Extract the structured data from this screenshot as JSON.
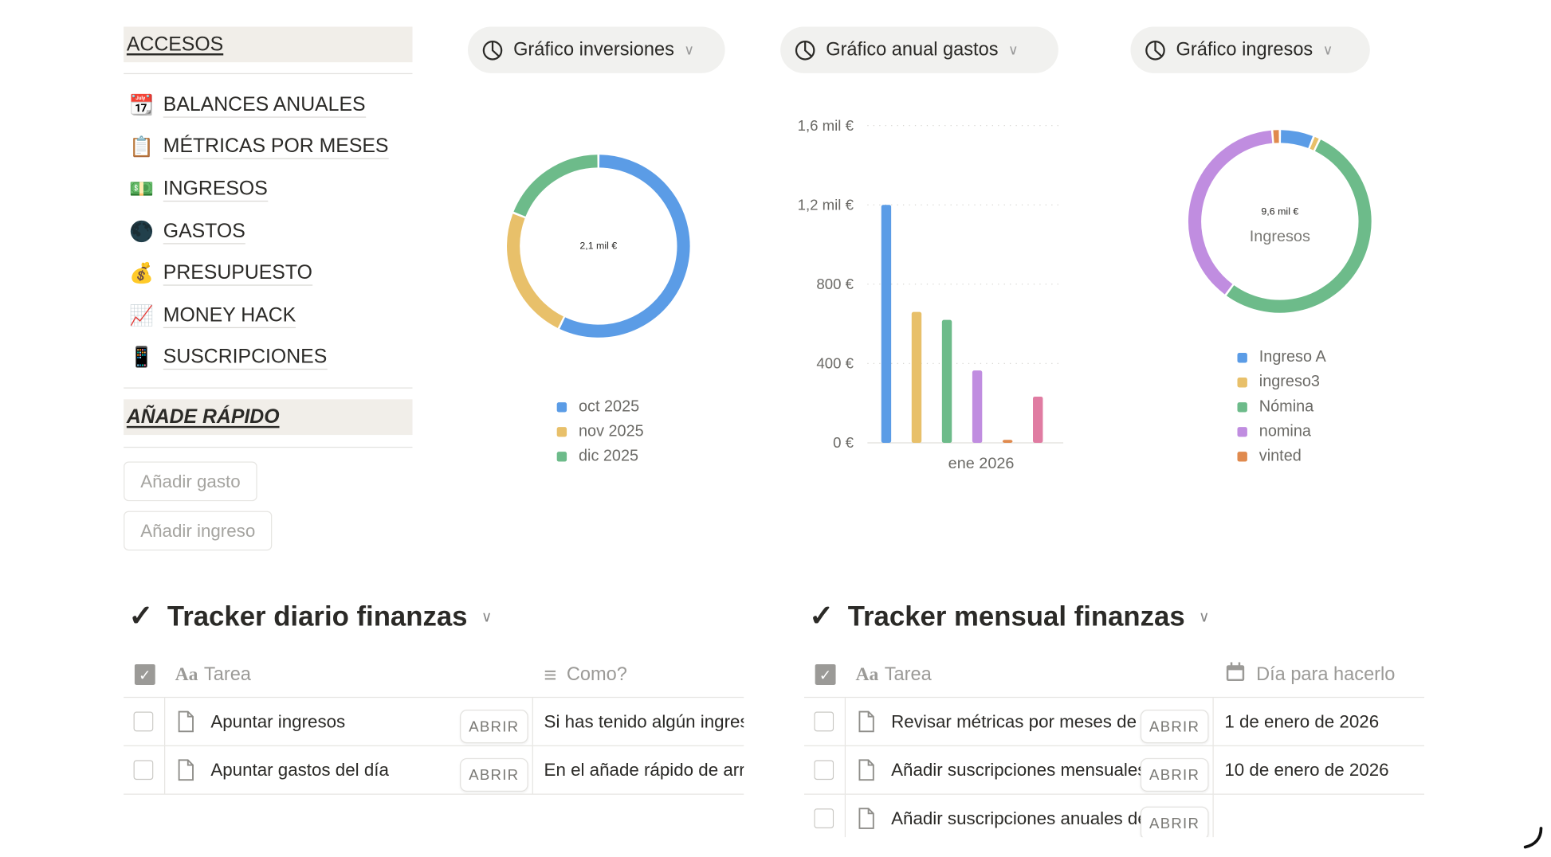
{
  "sidebar": {
    "accesos_title": "ACCESOS",
    "items": [
      {
        "icon": "📆",
        "icon_name": "calendar-icon",
        "label": "BALANCES ANUALES"
      },
      {
        "icon": "📋",
        "icon_name": "clipboard-icon",
        "label": "MÉTRICAS POR MESES"
      },
      {
        "icon": "💵",
        "icon_name": "money-icon",
        "label": "INGRESOS"
      },
      {
        "icon": "🌑",
        "icon_name": "moon-icon",
        "label": "GASTOS"
      },
      {
        "icon": "💰",
        "icon_name": "money-bag-icon",
        "label": "PRESUPUESTO"
      },
      {
        "icon": "📈",
        "icon_name": "chart-increasing-icon",
        "label": "MONEY HACK"
      },
      {
        "icon": "📱",
        "icon_name": "mobile-phone-icon",
        "label": "SUSCRIPCIONES"
      }
    ],
    "quick_title": "AÑADE RÁPIDO",
    "quick_buttons": [
      "Añadir gasto",
      "Añadir ingreso"
    ]
  },
  "chart_selectors": [
    "Gráfico inversiones",
    "Gráfico anual gastos",
    "Gráfico ingresos"
  ],
  "chart_data": [
    {
      "type": "pie",
      "donut": true,
      "center_label": "2,1 mil €",
      "categories": [
        "oct 2025",
        "nov 2025",
        "dic 2025"
      ],
      "values": [
        1200,
        500,
        400
      ],
      "colors": [
        "#5b9ce6",
        "#e8c06a",
        "#6dbb8a"
      ],
      "legend": "bottom"
    },
    {
      "type": "bar",
      "categories": [
        "ene 2026"
      ],
      "series": [
        {
          "values": [
            1200
          ],
          "color": "#5b9ce6"
        },
        {
          "values": [
            660
          ],
          "color": "#e8c06a"
        },
        {
          "values": [
            620
          ],
          "color": "#6dbb8a"
        },
        {
          "values": [
            365
          ],
          "color": "#c08de0"
        },
        {
          "values": [
            15
          ],
          "color": "#e08a4e"
        },
        {
          "values": [
            233
          ],
          "color": "#e07ca2"
        }
      ],
      "yticks": [
        "0 €",
        "400 €",
        "800 €",
        "1,2 mil €",
        "1,6 mil €"
      ],
      "ylim": [
        0,
        1600
      ],
      "grid": true
    },
    {
      "type": "pie",
      "donut": true,
      "center_label": "9,6 mil €",
      "center_sublabel": "Ingresos",
      "categories": [
        "Ingreso A",
        "ingreso3",
        "Nómina",
        "nomina",
        "vinted"
      ],
      "values": [
        580,
        110,
        5080,
        3700,
        130
      ],
      "colors": [
        "#5b9ce6",
        "#e8c06a",
        "#6dbb8a",
        "#c08de0",
        "#e08a4e"
      ],
      "legend": "bottom"
    }
  ],
  "tracker_diario": {
    "title": "Tracker diario finanzas",
    "columns": [
      "Tarea",
      "Como?"
    ],
    "rows": [
      {
        "tarea": "Apuntar ingresos",
        "como": "Si has tenido algún ingreso"
      },
      {
        "tarea": "Apuntar gastos del día",
        "como": "En el añade rápido de arriba"
      }
    ]
  },
  "tracker_mensual": {
    "title": "Tracker mensual finanzas",
    "columns": [
      "Tarea",
      "Día para hacerlo"
    ],
    "rows": [
      {
        "tarea": "Revisar métricas por meses de la",
        "dia": "1 de enero de 2026"
      },
      {
        "tarea": "Añadir suscripciones mensuales a",
        "dia": "10 de enero de 2026"
      },
      {
        "tarea": "Añadir suscripciones anuales de",
        "dia": ""
      }
    ]
  },
  "open_label": "ABRIR",
  "text_icon": "Aa"
}
